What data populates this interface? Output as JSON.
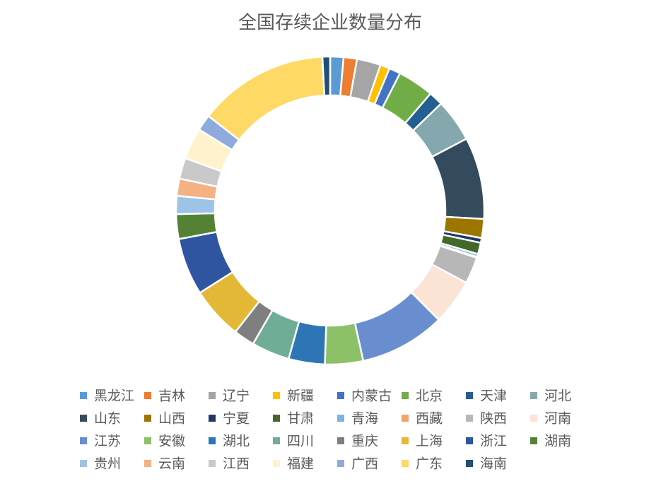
{
  "chart_data": {
    "type": "donut",
    "title": "全国存续企业数量分布",
    "categories": [
      "黑龙江",
      "吉林",
      "辽宁",
      "新疆",
      "内蒙古",
      "北京",
      "天津",
      "河北",
      "山东",
      "山西",
      "宁夏",
      "甘肃",
      "青海",
      "西藏",
      "陕西",
      "河南",
      "江苏",
      "安徽",
      "湖北",
      "四川",
      "重庆",
      "上海",
      "浙江",
      "湖南",
      "贵州",
      "云南",
      "江西",
      "福建",
      "广西",
      "广东",
      "海南"
    ],
    "values": [
      1.4,
      1.4,
      2.5,
      1.0,
      1.2,
      3.8,
      1.5,
      4.5,
      8.6,
      2.0,
      0.5,
      1.2,
      0.3,
      0.1,
      2.8,
      4.8,
      9.0,
      4.0,
      3.8,
      4.0,
      2.2,
      5.5,
      6.0,
      2.6,
      1.9,
      1.8,
      2.2,
      3.3,
      1.7,
      13.7,
      0.8
    ],
    "colors": [
      "#5B9BD5",
      "#ED7D31",
      "#A5A5A5",
      "#FFC000",
      "#4472C4",
      "#70AD47",
      "#255E91",
      "#85A8AE",
      "#344B5E",
      "#9C7600",
      "#1F3864",
      "#43682B",
      "#7EB3E0",
      "#F4A26B",
      "#B7B7B7",
      "#FBE3D6",
      "#698ED0",
      "#8CC168",
      "#2E75B6",
      "#70AD97",
      "#7F7F7F",
      "#E2B836",
      "#2F55A0",
      "#548235",
      "#9DC3E6",
      "#F4B183",
      "#C9C9C9",
      "#FFF2CC",
      "#8FAADC",
      "#FFD966",
      "#1F4E79"
    ],
    "legend": "bottom"
  }
}
